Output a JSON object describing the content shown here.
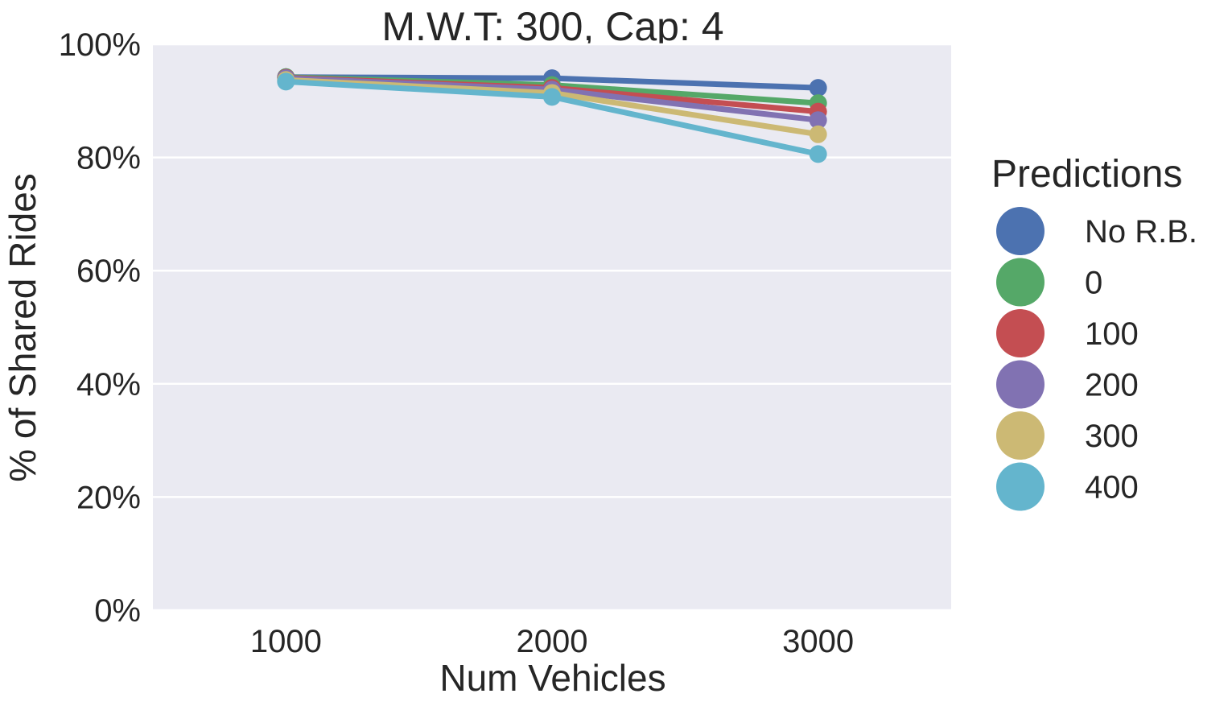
{
  "chart_data": {
    "type": "line",
    "title": "M.W.T: 300, Cap: 4",
    "xlabel": "Num Vehicles",
    "ylabel": "% of Shared Rides",
    "categories": [
      "1000",
      "2000",
      "3000"
    ],
    "ylim": [
      0,
      100
    ],
    "yticks": [
      "0%",
      "20%",
      "40%",
      "60%",
      "80%",
      "100%"
    ],
    "ytick_values": [
      0,
      20,
      40,
      60,
      80,
      100
    ],
    "grid": true,
    "background": "#eaeaf2",
    "legend": {
      "title": "Predictions",
      "placement": "right"
    },
    "series": [
      {
        "name": "No R.B.",
        "color": "#4c72b0",
        "values": [
          94.2,
          94.0,
          92.3
        ]
      },
      {
        "name": "0",
        "color": "#55a868",
        "values": [
          94.2,
          92.8,
          89.6
        ]
      },
      {
        "name": "100",
        "color": "#c44e52",
        "values": [
          94.1,
          92.3,
          88.1
        ]
      },
      {
        "name": "200",
        "color": "#8172b2",
        "values": [
          94.0,
          92.0,
          86.6
        ]
      },
      {
        "name": "300",
        "color": "#ccb974",
        "values": [
          93.7,
          91.4,
          84.1
        ]
      },
      {
        "name": "400",
        "color": "#64b5cd",
        "values": [
          93.4,
          90.7,
          80.6
        ]
      }
    ]
  }
}
